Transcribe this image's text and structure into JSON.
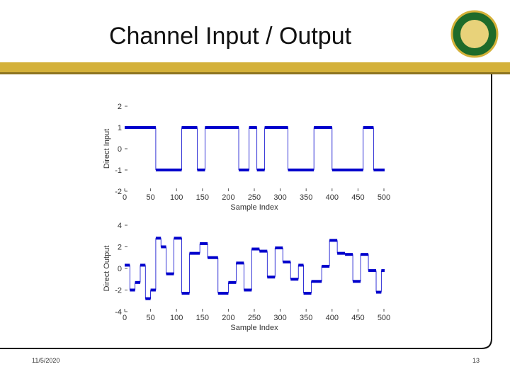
{
  "slide_title": "Channel Input / Output",
  "date": "11/5/2020",
  "page_number": "13",
  "chart_data": [
    {
      "type": "step",
      "color": "#0000cc",
      "xlabel": "Sample Index",
      "ylabel": "Direct Input",
      "x": [
        0,
        60,
        110,
        140,
        155,
        220,
        240,
        255,
        270,
        315,
        365,
        400,
        460,
        480,
        500
      ],
      "values": [
        1,
        -1,
        1,
        -1,
        1,
        -1,
        1,
        -1,
        1,
        -1,
        1,
        -1,
        1,
        -1,
        -1
      ],
      "xlim": [
        0,
        500
      ],
      "xticks": [
        0,
        50,
        100,
        150,
        200,
        250,
        300,
        350,
        400,
        450,
        500
      ],
      "ylim": [
        -2,
        2
      ],
      "yticks": [
        -2,
        -1,
        0,
        1,
        2
      ]
    },
    {
      "type": "step",
      "color": "#0000cc",
      "xlabel": "Sample Index",
      "ylabel": "Direct Output",
      "x": [
        0,
        10,
        20,
        30,
        40,
        50,
        60,
        70,
        80,
        95,
        110,
        125,
        145,
        160,
        180,
        200,
        215,
        230,
        245,
        260,
        275,
        290,
        305,
        320,
        335,
        345,
        360,
        380,
        395,
        410,
        425,
        440,
        455,
        470,
        485,
        495,
        500
      ],
      "values": [
        0.3,
        -2,
        -1.3,
        0.3,
        -2.8,
        -2,
        2.8,
        2,
        -0.5,
        2.8,
        -2.3,
        1.4,
        2.3,
        1,
        -2.3,
        -1.3,
        0.5,
        -2,
        1.8,
        1.6,
        -0.8,
        1.9,
        0.6,
        -1,
        0.3,
        -2.3,
        -1.2,
        0.2,
        2.6,
        1.4,
        1.3,
        -1.2,
        1.3,
        -0.2,
        -2.2,
        -0.2,
        -0.2
      ],
      "xlim": [
        0,
        500
      ],
      "xticks": [
        0,
        50,
        100,
        150,
        200,
        250,
        300,
        350,
        400,
        450,
        500
      ],
      "ylim": [
        -4,
        4
      ],
      "yticks": [
        -4,
        -2,
        0,
        2,
        4
      ]
    }
  ]
}
